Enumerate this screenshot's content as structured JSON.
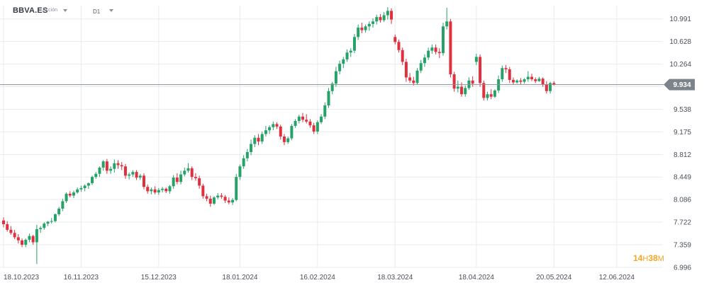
{
  "toolbar": {
    "symbol": "BBVA.ES",
    "asset_type": "Acción",
    "timeframe": "D1",
    "symbol_dropdown_icon": "chevron-down-icon",
    "timeframe_dropdown_icon": "chevron-down-icon"
  },
  "countdown": {
    "hours": "14",
    "hours_unit": "H",
    "minutes": "38",
    "minutes_unit": "M",
    "color": "#f5a623"
  },
  "colors": {
    "up": "#26a269",
    "down": "#e0303e",
    "grid": "#e9ebee",
    "last_price_line": "#8a8f96",
    "last_price_badge": "#7d838b"
  },
  "chart_data": {
    "type": "candlestick",
    "symbol": "BBVA.ES",
    "timeframe": "D1",
    "last_price": 9.934,
    "ylim": [
      6.996,
      11.09
    ],
    "y_ticks": [
      6.996,
      7.359,
      7.722,
      8.086,
      8.449,
      8.812,
      9.175,
      9.538,
      9.901,
      10.264,
      10.628,
      10.991
    ],
    "y_tick_labels": [
      "6.996",
      "7.359",
      "7.722",
      "8.086",
      "8.449",
      "8.812",
      "9.175",
      "9.538",
      "",
      "10.264",
      "10.628",
      "10.991"
    ],
    "x_tick_labels": [
      "18.10.2023",
      "16.11.2023",
      "15.12.2023",
      "18.01.2024",
      "16.02.2024",
      "18.03.2024",
      "18.04.2024",
      "20.05.2024",
      "12.06.2024"
    ],
    "x_tick_bar_index": [
      0,
      21,
      42,
      64,
      85,
      106,
      128,
      149,
      166
    ],
    "grid": true,
    "legend": "none",
    "ohlc": [
      [
        7.75,
        7.8,
        7.64,
        7.69
      ],
      [
        7.69,
        7.74,
        7.57,
        7.6
      ],
      [
        7.6,
        7.66,
        7.52,
        7.55
      ],
      [
        7.55,
        7.6,
        7.45,
        7.48
      ],
      [
        7.48,
        7.53,
        7.38,
        7.43
      ],
      [
        7.43,
        7.46,
        7.32,
        7.36
      ],
      [
        7.36,
        7.46,
        7.32,
        7.44
      ],
      [
        7.44,
        7.54,
        7.4,
        7.5
      ],
      [
        7.5,
        7.52,
        7.36,
        7.4
      ],
      [
        7.4,
        7.68,
        7.05,
        7.61
      ],
      [
        7.61,
        7.66,
        7.55,
        7.63
      ],
      [
        7.63,
        7.72,
        7.6,
        7.7
      ],
      [
        7.7,
        7.74,
        7.66,
        7.73
      ],
      [
        7.73,
        7.79,
        7.7,
        7.74
      ],
      [
        7.74,
        7.86,
        7.72,
        7.85
      ],
      [
        7.85,
        7.97,
        7.82,
        7.94
      ],
      [
        7.94,
        8.1,
        7.9,
        8.06
      ],
      [
        8.06,
        8.2,
        8.03,
        8.18
      ],
      [
        8.18,
        8.22,
        8.12,
        8.15
      ],
      [
        8.15,
        8.23,
        8.11,
        8.2
      ],
      [
        8.2,
        8.28,
        8.18,
        8.25
      ],
      [
        8.25,
        8.31,
        8.21,
        8.27
      ],
      [
        8.27,
        8.33,
        8.22,
        8.31
      ],
      [
        8.31,
        8.36,
        8.26,
        8.35
      ],
      [
        8.35,
        8.47,
        8.32,
        8.45
      ],
      [
        8.45,
        8.53,
        8.42,
        8.5
      ],
      [
        8.5,
        8.62,
        8.45,
        8.6
      ],
      [
        8.6,
        8.72,
        8.55,
        8.7
      ],
      [
        8.7,
        8.74,
        8.5,
        8.55
      ],
      [
        8.55,
        8.62,
        8.5,
        8.58
      ],
      [
        8.58,
        8.73,
        8.52,
        8.67
      ],
      [
        8.67,
        8.72,
        8.58,
        8.64
      ],
      [
        8.64,
        8.69,
        8.56,
        8.62
      ],
      [
        8.62,
        8.66,
        8.42,
        8.47
      ],
      [
        8.47,
        8.52,
        8.41,
        8.49
      ],
      [
        8.49,
        8.56,
        8.45,
        8.53
      ],
      [
        8.53,
        8.56,
        8.4,
        8.44
      ],
      [
        8.44,
        8.5,
        8.4,
        8.47
      ],
      [
        8.47,
        8.51,
        8.25,
        8.29
      ],
      [
        8.29,
        8.33,
        8.18,
        8.22
      ],
      [
        8.22,
        8.28,
        8.17,
        8.25
      ],
      [
        8.25,
        8.3,
        8.17,
        8.2
      ],
      [
        8.2,
        8.27,
        8.16,
        8.24
      ],
      [
        8.24,
        8.29,
        8.2,
        8.26
      ],
      [
        8.26,
        8.28,
        8.19,
        8.22
      ],
      [
        8.22,
        8.32,
        8.18,
        8.3
      ],
      [
        8.3,
        8.48,
        8.26,
        8.44
      ],
      [
        8.44,
        8.51,
        8.33,
        8.37
      ],
      [
        8.37,
        8.55,
        8.33,
        8.49
      ],
      [
        8.49,
        8.6,
        8.46,
        8.55
      ],
      [
        8.55,
        8.67,
        8.52,
        8.59
      ],
      [
        8.59,
        8.62,
        8.4,
        8.45
      ],
      [
        8.45,
        8.51,
        8.39,
        8.43
      ],
      [
        8.43,
        8.47,
        8.26,
        8.31
      ],
      [
        8.31,
        8.34,
        8.1,
        8.14
      ],
      [
        8.14,
        8.18,
        8.06,
        8.1
      ],
      [
        8.1,
        8.15,
        7.97,
        8.02
      ],
      [
        8.02,
        8.14,
        8.0,
        8.12
      ],
      [
        8.12,
        8.19,
        8.09,
        8.15
      ],
      [
        8.15,
        8.19,
        8.1,
        8.13
      ],
      [
        8.13,
        8.16,
        8.03,
        8.07
      ],
      [
        8.07,
        8.12,
        8.01,
        8.04
      ],
      [
        8.04,
        8.11,
        8.0,
        8.08
      ],
      [
        8.08,
        8.5,
        8.06,
        8.45
      ],
      [
        8.45,
        8.65,
        8.4,
        8.62
      ],
      [
        8.62,
        8.8,
        8.58,
        8.75
      ],
      [
        8.75,
        8.9,
        8.7,
        8.85
      ],
      [
        8.85,
        9.05,
        8.8,
        8.98
      ],
      [
        8.98,
        9.12,
        8.93,
        9.08
      ],
      [
        9.08,
        9.14,
        8.96,
        9.02
      ],
      [
        9.02,
        9.18,
        8.98,
        9.14
      ],
      [
        9.14,
        9.27,
        9.1,
        9.2
      ],
      [
        9.2,
        9.28,
        9.14,
        9.25
      ],
      [
        9.25,
        9.34,
        9.2,
        9.3
      ],
      [
        9.3,
        9.33,
        9.22,
        9.26
      ],
      [
        9.26,
        9.29,
        9.05,
        9.1
      ],
      [
        9.1,
        9.14,
        8.96,
        9.01
      ],
      [
        9.01,
        9.1,
        8.98,
        9.07
      ],
      [
        9.07,
        9.3,
        9.04,
        9.27
      ],
      [
        9.27,
        9.38,
        9.24,
        9.35
      ],
      [
        9.35,
        9.45,
        9.31,
        9.42
      ],
      [
        9.42,
        9.48,
        9.33,
        9.37
      ],
      [
        9.37,
        9.46,
        9.31,
        9.34
      ],
      [
        9.34,
        9.38,
        9.24,
        9.28
      ],
      [
        9.28,
        9.32,
        9.14,
        9.18
      ],
      [
        9.18,
        9.36,
        9.14,
        9.33
      ],
      [
        9.33,
        9.46,
        9.3,
        9.42
      ],
      [
        9.42,
        9.65,
        9.38,
        9.6
      ],
      [
        9.6,
        9.88,
        9.56,
        9.83
      ],
      [
        9.83,
        9.98,
        9.78,
        9.95
      ],
      [
        9.95,
        10.22,
        9.9,
        10.15
      ],
      [
        10.15,
        10.32,
        10.1,
        10.27
      ],
      [
        10.27,
        10.38,
        10.2,
        10.34
      ],
      [
        10.34,
        10.5,
        10.3,
        10.45
      ],
      [
        10.45,
        10.52,
        10.38,
        10.48
      ],
      [
        10.48,
        10.75,
        10.44,
        10.7
      ],
      [
        10.7,
        10.9,
        10.65,
        10.85
      ],
      [
        10.85,
        10.93,
        10.76,
        10.81
      ],
      [
        10.81,
        10.9,
        10.77,
        10.87
      ],
      [
        10.87,
        10.95,
        10.8,
        10.91
      ],
      [
        10.91,
        11.0,
        10.85,
        10.95
      ],
      [
        10.95,
        11.06,
        10.9,
        11.02
      ],
      [
        11.02,
        11.07,
        10.93,
        10.97
      ],
      [
        10.97,
        11.1,
        10.94,
        11.05
      ],
      [
        11.05,
        11.18,
        10.98,
        11.12
      ],
      [
        11.12,
        11.16,
        10.91,
        10.98
      ],
      [
        10.7,
        10.74,
        10.58,
        10.62
      ],
      [
        10.62,
        10.66,
        10.45,
        10.49
      ],
      [
        10.49,
        10.53,
        10.25,
        10.3
      ],
      [
        10.3,
        10.35,
        9.98,
        10.05
      ],
      [
        10.05,
        10.12,
        9.96,
        10.0
      ],
      [
        10.0,
        10.06,
        9.92,
        9.96
      ],
      [
        9.96,
        10.2,
        9.93,
        10.16
      ],
      [
        10.16,
        10.33,
        10.12,
        10.28
      ],
      [
        10.28,
        10.42,
        10.22,
        10.37
      ],
      [
        10.37,
        10.53,
        10.33,
        10.48
      ],
      [
        10.48,
        10.58,
        10.43,
        10.53
      ],
      [
        10.53,
        10.58,
        10.42,
        10.46
      ],
      [
        10.46,
        10.52,
        10.36,
        10.44
      ],
      [
        10.44,
        10.93,
        10.4,
        10.87
      ],
      [
        10.87,
        11.17,
        10.82,
        10.95
      ],
      [
        10.95,
        10.99,
        10.05,
        10.1
      ],
      [
        10.1,
        10.14,
        9.82,
        9.87
      ],
      [
        9.87,
        10.0,
        9.81,
        9.9
      ],
      [
        9.9,
        9.97,
        9.74,
        9.78
      ],
      [
        9.78,
        9.92,
        9.74,
        9.88
      ],
      [
        9.88,
        10.05,
        9.85,
        10.0
      ],
      [
        10.0,
        10.07,
        9.9,
        9.95
      ],
      [
        10.3,
        10.43,
        10.25,
        10.38
      ],
      [
        10.38,
        10.42,
        9.9,
        9.96
      ],
      [
        9.96,
        10.0,
        9.68,
        9.72
      ],
      [
        9.72,
        9.82,
        9.68,
        9.78
      ],
      [
        9.78,
        9.86,
        9.7,
        9.74
      ],
      [
        9.74,
        9.86,
        9.72,
        9.84
      ],
      [
        9.84,
        10.08,
        9.8,
        10.02
      ],
      [
        10.02,
        10.24,
        9.98,
        10.2
      ],
      [
        10.2,
        10.25,
        10.12,
        10.18
      ],
      [
        10.18,
        10.22,
        9.96,
        10.01
      ],
      [
        10.01,
        10.05,
        9.93,
        9.97
      ],
      [
        9.97,
        10.02,
        9.95,
        10.0
      ],
      [
        10.0,
        10.04,
        9.94,
        9.98
      ],
      [
        9.98,
        10.04,
        9.95,
        10.02
      ],
      [
        10.02,
        10.15,
        9.98,
        10.06
      ],
      [
        10.06,
        10.11,
        9.99,
        10.02
      ],
      [
        10.02,
        10.05,
        9.96,
        9.99
      ],
      [
        9.99,
        10.06,
        9.98,
        10.03
      ],
      [
        10.03,
        10.05,
        9.9,
        9.94
      ],
      [
        9.94,
        9.99,
        9.79,
        9.83
      ],
      [
        9.83,
        9.98,
        9.79,
        9.96
      ],
      [
        9.96,
        9.99,
        9.92,
        9.934
      ]
    ]
  }
}
